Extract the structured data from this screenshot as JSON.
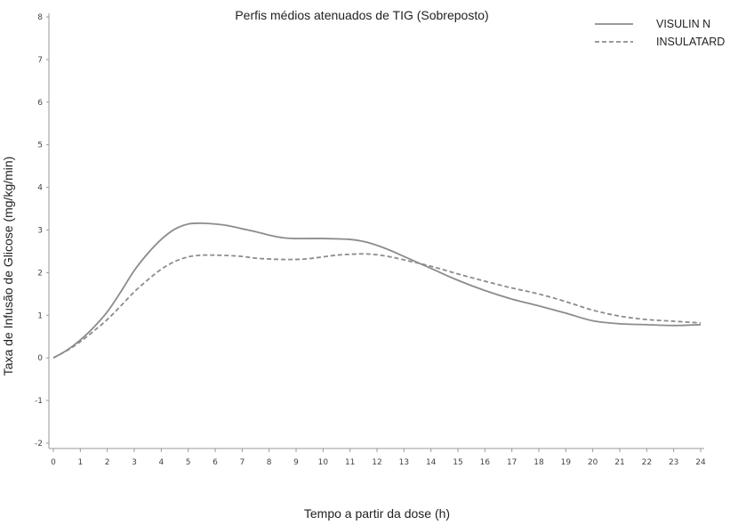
{
  "chart_data": {
    "type": "line",
    "title": "Perfis médios atenuados de TIG (Sobreposto)",
    "xlabel": "Tempo a partir da dose (h)",
    "ylabel": "Taxa de Infusão de Glicose (mg/kg/min)",
    "xlim": [
      0,
      24
    ],
    "ylim": [
      -2,
      8
    ],
    "x_ticks": [
      "0",
      "1",
      "2",
      "3",
      "4",
      "5",
      "6",
      "7",
      "8",
      "9",
      "10",
      "11",
      "12",
      "13",
      "14",
      "15",
      "16",
      "17",
      "18",
      "19",
      "20",
      "21",
      "22",
      "23",
      "24"
    ],
    "y_ticks": [
      "-2",
      "-1",
      "0",
      "1",
      "2",
      "3",
      "4",
      "5",
      "6",
      "7",
      "8"
    ],
    "grid": false,
    "legend_position": "top-right",
    "series": [
      {
        "name": "VISULIN N",
        "style": "solid",
        "color": "#8c8c8c",
        "x": [
          0,
          0.5,
          1,
          1.5,
          2,
          2.5,
          3,
          3.5,
          4,
          4.5,
          5,
          5.5,
          6,
          6.5,
          7,
          7.5,
          8,
          8.5,
          9,
          10,
          11,
          11.5,
          12,
          12.5,
          13,
          14,
          15,
          16,
          17,
          18,
          19,
          20,
          21,
          22,
          23,
          24
        ],
        "y": [
          0,
          0.18,
          0.42,
          0.72,
          1.08,
          1.55,
          2.05,
          2.45,
          2.78,
          3.02,
          3.14,
          3.16,
          3.14,
          3.1,
          3.03,
          2.96,
          2.88,
          2.82,
          2.8,
          2.8,
          2.78,
          2.73,
          2.64,
          2.52,
          2.38,
          2.1,
          1.82,
          1.58,
          1.38,
          1.22,
          1.05,
          0.87,
          0.8,
          0.78,
          0.76,
          0.78
        ]
      },
      {
        "name": "INSULATARD",
        "style": "dashed",
        "color": "#8c8c8c",
        "x": [
          0,
          0.5,
          1,
          1.5,
          2,
          2.5,
          3,
          3.5,
          4,
          4.5,
          5,
          5.5,
          6,
          6.5,
          7,
          7.5,
          8,
          8.5,
          9,
          9.5,
          10,
          10.5,
          11,
          11.5,
          12,
          12.5,
          13,
          14,
          15,
          16,
          17,
          18,
          19,
          20,
          21,
          22,
          23,
          24
        ],
        "y": [
          0,
          0.17,
          0.38,
          0.63,
          0.9,
          1.22,
          1.55,
          1.83,
          2.08,
          2.26,
          2.37,
          2.41,
          2.41,
          2.4,
          2.38,
          2.34,
          2.32,
          2.31,
          2.31,
          2.33,
          2.37,
          2.41,
          2.43,
          2.44,
          2.42,
          2.37,
          2.3,
          2.15,
          1.97,
          1.8,
          1.64,
          1.5,
          1.32,
          1.12,
          0.98,
          0.9,
          0.86,
          0.82
        ]
      }
    ]
  }
}
